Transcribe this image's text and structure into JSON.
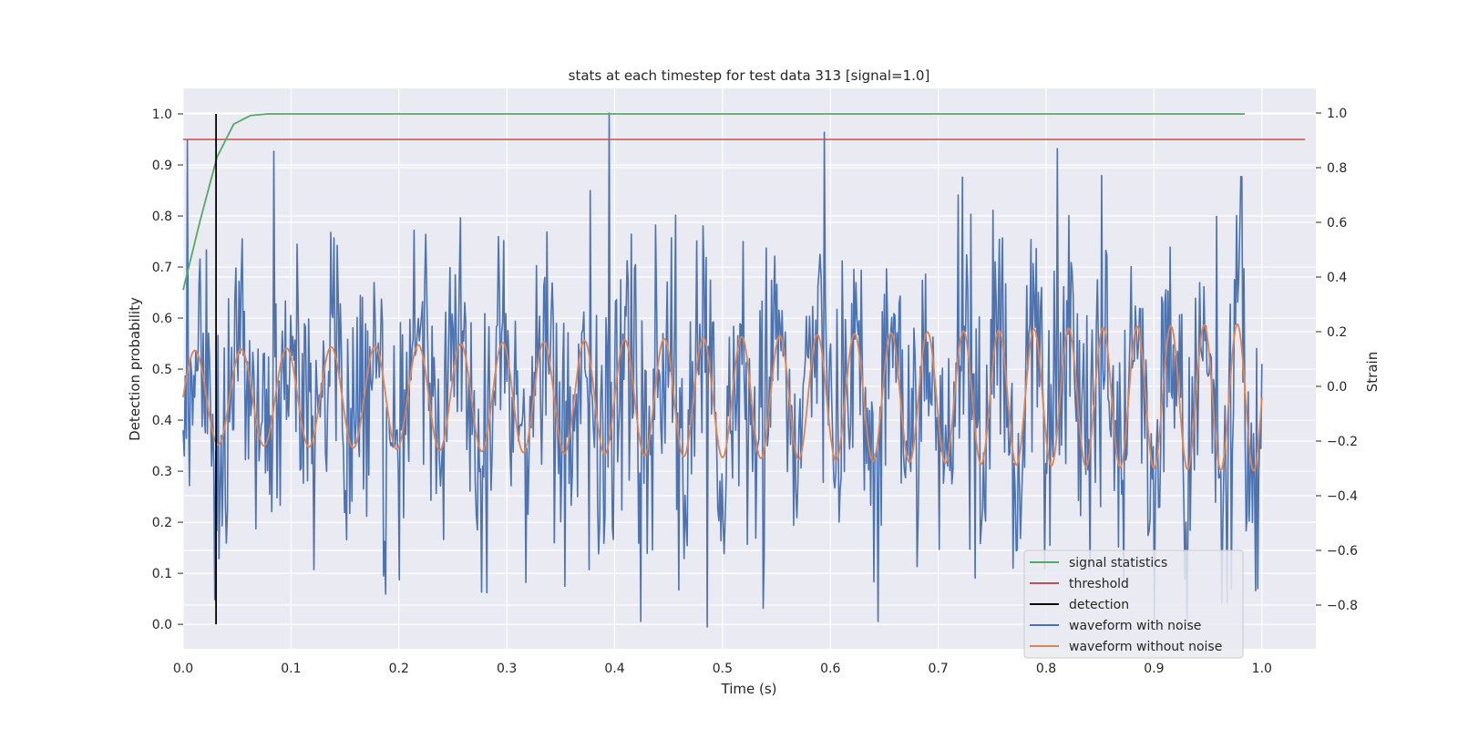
{
  "chart_data": {
    "type": "line",
    "title": "stats at each timestep for test data 313 [signal=1.0]",
    "xlabel": "Time (s)",
    "ylabel": "Detection probability",
    "ylabel_right": "Strain",
    "xlim": [
      0.0,
      1.05
    ],
    "ylim": [
      -0.048,
      1.05
    ],
    "ylim_right": [
      -0.96,
      1.09
    ],
    "x_ticks": [
      "0.0",
      "0.1",
      "0.2",
      "0.3",
      "0.4",
      "0.5",
      "0.6",
      "0.7",
      "0.8",
      "0.9",
      "1.0"
    ],
    "x_tick_values": [
      0.0,
      0.1,
      0.2,
      0.3,
      0.4,
      0.5,
      0.6,
      0.7,
      0.8,
      0.9,
      1.0
    ],
    "y_ticks": [
      "0.0",
      "0.1",
      "0.2",
      "0.3",
      "0.4",
      "0.5",
      "0.6",
      "0.7",
      "0.8",
      "0.9",
      "1.0"
    ],
    "y_tick_values": [
      0.0,
      0.1,
      0.2,
      0.3,
      0.4,
      0.5,
      0.6,
      0.7,
      0.8,
      0.9,
      1.0
    ],
    "y_right_ticks": [
      "−0.8",
      "−0.6",
      "−0.4",
      "−0.2",
      "0.0",
      "0.2",
      "0.4",
      "0.6",
      "0.8",
      "1.0"
    ],
    "y_right_tick_values": [
      -0.8,
      -0.6,
      -0.4,
      -0.2,
      0.0,
      0.2,
      0.4,
      0.6,
      0.8,
      1.0
    ],
    "grid": true,
    "legend_position": "lower-right",
    "series": [
      {
        "name": "signal statistics",
        "axis": "left",
        "color": "#55a868",
        "x": [
          0.0,
          0.0156,
          0.0313,
          0.0469,
          0.0625,
          0.0781,
          0.1,
          0.2,
          0.3,
          0.4,
          0.5,
          0.6,
          0.7,
          0.8,
          0.9,
          0.984
        ],
        "y": [
          0.655,
          0.79,
          0.915,
          0.98,
          0.997,
          1.0,
          1.0,
          1.0,
          1.0,
          1.0,
          1.0,
          1.0,
          1.0,
          1.0,
          1.0,
          1.0
        ]
      },
      {
        "name": "threshold",
        "axis": "left",
        "color": "#c44e52",
        "x": [
          0.0,
          1.04
        ],
        "y": [
          0.95,
          0.95
        ]
      },
      {
        "name": "detection",
        "axis": "left",
        "color": "#000000",
        "x": [
          0.0305,
          0.0305
        ],
        "y": [
          0.0,
          1.0
        ]
      },
      {
        "name": "waveform with noise",
        "axis": "right",
        "color": "#4c72b0",
        "x_range": [
          0.0,
          1.0
        ],
        "n_points": 1024,
        "approx_amplitude": 0.25,
        "extremes": [
          {
            "x": 0.395,
            "y": 1.0
          },
          {
            "x": 0.486,
            "y": -0.88
          },
          {
            "x": 0.594,
            "y": 0.93
          },
          {
            "x": 0.188,
            "y": -0.76
          },
          {
            "x": 0.084,
            "y": 0.86
          },
          {
            "x": 0.029,
            "y": -0.78
          },
          {
            "x": 0.81,
            "y": 0.87
          },
          {
            "x": 0.931,
            "y": -0.86
          },
          {
            "x": 0.996,
            "y": -0.74
          }
        ]
      },
      {
        "name": "waveform without noise",
        "axis": "right",
        "color": "#dd8452",
        "x_range": [
          0.0,
          1.0
        ],
        "approx_frequency_start_hz": 23,
        "approx_frequency_end_hz": 33,
        "approx_amplitude_start": 0.17,
        "approx_amplitude_end": 0.27
      }
    ]
  },
  "legend": [
    {
      "label": "signal statistics",
      "color": "#55a868"
    },
    {
      "label": "threshold",
      "color": "#c44e52"
    },
    {
      "label": "detection",
      "color": "#000000"
    },
    {
      "label": "waveform with noise",
      "color": "#4c72b0"
    },
    {
      "label": "waveform without noise",
      "color": "#dd8452"
    }
  ],
  "colors": {
    "plot_background": "#eaeaf2",
    "grid": "#ffffff"
  }
}
